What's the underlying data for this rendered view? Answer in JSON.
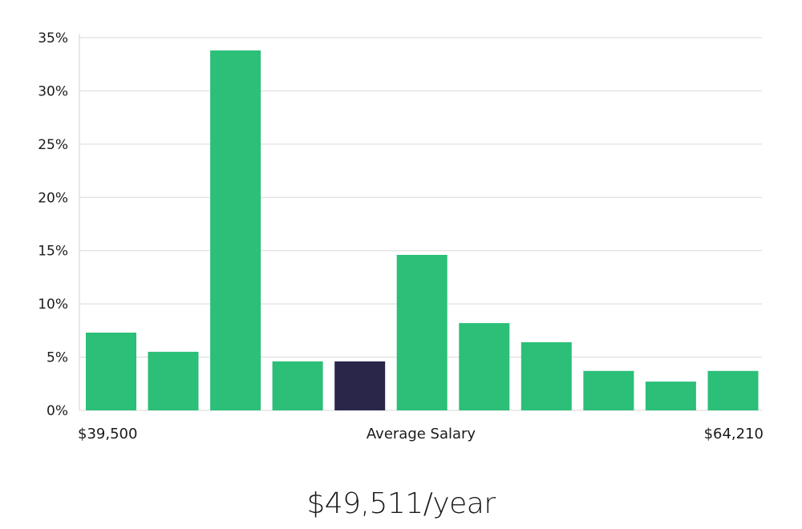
{
  "chart_data": {
    "type": "bar",
    "y_ticks": [
      "0%",
      "5%",
      "10%",
      "15%",
      "20%",
      "25%",
      "30%",
      "35%"
    ],
    "ylim": [
      0,
      35
    ],
    "values": [
      7.3,
      5.5,
      33.8,
      4.6,
      4.6,
      14.6,
      8.2,
      6.4,
      3.7,
      2.7,
      3.7
    ],
    "highlight_index": 4,
    "x_min_label": "$39,500",
    "x_center_label": "Average Salary",
    "x_max_label": "$64,210",
    "grid": true,
    "colors": {
      "bar": "#2bbf78",
      "highlight": "#29264a",
      "grid": "#d9d9d9"
    }
  },
  "salary_summary": "$49,511/year"
}
